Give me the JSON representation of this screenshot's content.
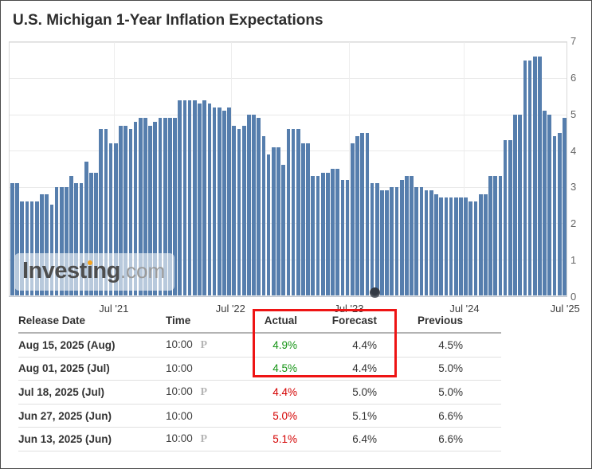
{
  "title": "U.S. Michigan 1-Year Inflation Expectations",
  "watermark": {
    "brand": "Investing",
    "suffix": ".com"
  },
  "colors": {
    "bar": "#567ead",
    "green": "#159415",
    "red": "#d40000",
    "highlight": "#ee1414",
    "logo_orange": "#f7a41d"
  },
  "chart_data": {
    "type": "bar",
    "title": "U.S. Michigan 1-Year Inflation Expectations",
    "unit": "%",
    "ylim": [
      0,
      7
    ],
    "yticks": [
      "0",
      "1",
      "2",
      "3",
      "4",
      "5",
      "6",
      "7"
    ],
    "y_axis_side": "right",
    "grid": true,
    "x_tick_labels": [
      "Jul '21",
      "Jul '22",
      "Jul '23",
      "Jul '24",
      "Jul '25"
    ],
    "x_tick_positions_pct": [
      18.8,
      39.7,
      60.9,
      81.6,
      99.6
    ],
    "values": [
      3.1,
      3.1,
      2.6,
      2.6,
      2.6,
      2.6,
      2.8,
      2.8,
      2.5,
      3.0,
      3.0,
      3.0,
      3.3,
      3.1,
      3.1,
      3.7,
      3.4,
      3.4,
      4.6,
      4.6,
      4.2,
      4.2,
      4.7,
      4.7,
      4.6,
      4.8,
      4.9,
      4.9,
      4.7,
      4.8,
      4.9,
      4.9,
      4.9,
      4.9,
      5.4,
      5.4,
      5.4,
      5.4,
      5.3,
      5.4,
      5.3,
      5.2,
      5.2,
      5.1,
      5.2,
      4.7,
      4.6,
      4.7,
      5.0,
      5.0,
      4.9,
      4.4,
      3.9,
      4.1,
      4.1,
      3.6,
      4.6,
      4.6,
      4.6,
      4.2,
      4.2,
      3.3,
      3.3,
      3.4,
      3.4,
      3.5,
      3.5,
      3.2,
      3.2,
      4.2,
      4.4,
      4.5,
      4.5,
      3.1,
      3.1,
      2.9,
      2.9,
      3.0,
      3.0,
      3.2,
      3.3,
      3.3,
      3.0,
      3.0,
      2.9,
      2.9,
      2.8,
      2.7,
      2.7,
      2.7,
      2.7,
      2.7,
      2.7,
      2.6,
      2.6,
      2.8,
      2.8,
      3.3,
      3.3,
      3.3,
      4.3,
      4.3,
      5.0,
      5.0,
      6.5,
      6.5,
      6.6,
      6.6,
      5.1,
      5.0,
      4.4,
      4.5,
      4.9
    ]
  },
  "table": {
    "headers": [
      "Release Date",
      "Time",
      "Actual",
      "Forecast",
      "Previous"
    ],
    "prelim_marker": "P",
    "rows": [
      {
        "date": "Aug 15, 2025 (Aug)",
        "time": "10:00",
        "prelim": true,
        "actual": "4.9%",
        "actual_color": "green",
        "forecast": "4.4%",
        "previous": "4.5%"
      },
      {
        "date": "Aug 01, 2025 (Jul)",
        "time": "10:00",
        "prelim": false,
        "actual": "4.5%",
        "actual_color": "green",
        "forecast": "4.4%",
        "previous": "5.0%"
      },
      {
        "date": "Jul 18, 2025 (Jul)",
        "time": "10:00",
        "prelim": true,
        "actual": "4.4%",
        "actual_color": "red",
        "forecast": "5.0%",
        "previous": "5.0%"
      },
      {
        "date": "Jun 27, 2025 (Jun)",
        "time": "10:00",
        "prelim": false,
        "actual": "5.0%",
        "actual_color": "red",
        "forecast": "5.1%",
        "previous": "6.6%"
      },
      {
        "date": "Jun 13, 2025 (Jun)",
        "time": "10:00",
        "prelim": true,
        "actual": "5.1%",
        "actual_color": "red",
        "forecast": "6.4%",
        "previous": "6.6%"
      }
    ]
  }
}
